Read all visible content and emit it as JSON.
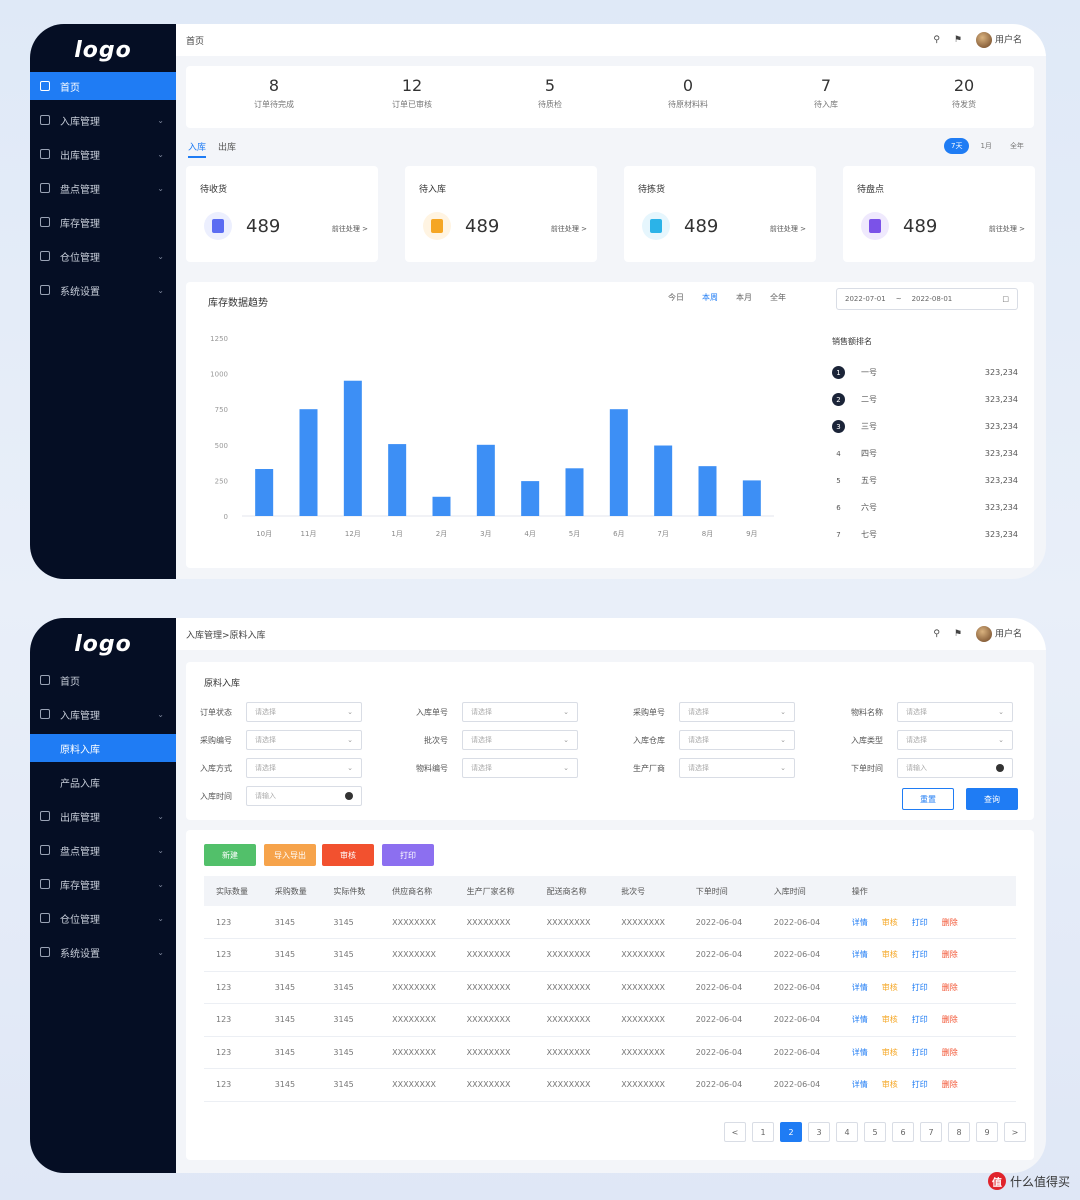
{
  "logo": "logo",
  "watermark": {
    "badge": "值",
    "text": "什么值得买"
  },
  "s1": {
    "sidebar": [
      "首页",
      "入库管理",
      "出库管理",
      "盘点管理",
      "库存管理",
      "仓位管理",
      "系统设置"
    ],
    "breadcrumb": "首页",
    "user": "用户名",
    "stats": [
      {
        "value": "8",
        "label": "订单待完成"
      },
      {
        "value": "12",
        "label": "订单已审核"
      },
      {
        "value": "5",
        "label": "待质检"
      },
      {
        "value": "0",
        "label": "待原材料料"
      },
      {
        "value": "7",
        "label": "待入库"
      },
      {
        "value": "20",
        "label": "待发货"
      }
    ],
    "tabs": [
      "入库",
      "出库"
    ],
    "seg": [
      "7天",
      "1月",
      "全年"
    ],
    "kpis": [
      {
        "title": "待收货",
        "value": "489",
        "link": "前往处理 >"
      },
      {
        "title": "待入库",
        "value": "489",
        "link": "前往处理 >"
      },
      {
        "title": "待拣货",
        "value": "489",
        "link": "前往处理 >"
      },
      {
        "title": "待盘点",
        "value": "489",
        "link": "前往处理 >"
      }
    ],
    "chart_title": "库存数据趋势",
    "range_tabs": [
      "今日",
      "本周",
      "本月",
      "全年"
    ],
    "date_start": "2022-07-01",
    "date_sep": "~",
    "date_end": "2022-08-01",
    "rank_title": "销售额排名",
    "ranks": [
      {
        "no": "1",
        "name": "一号",
        "value": "323,234"
      },
      {
        "no": "2",
        "name": "二号",
        "value": "323,234"
      },
      {
        "no": "3",
        "name": "三号",
        "value": "323,234"
      },
      {
        "no": "4",
        "name": "四号",
        "value": "323,234"
      },
      {
        "no": "5",
        "name": "五号",
        "value": "323,234"
      },
      {
        "no": "6",
        "name": "六号",
        "value": "323,234"
      },
      {
        "no": "7",
        "name": "七号",
        "value": "323,234"
      }
    ]
  },
  "chart_data": {
    "type": "bar",
    "categories": [
      "10月",
      "11月",
      "12月",
      "1月",
      "2月",
      "3月",
      "4月",
      "5月",
      "6月",
      "7月",
      "8月",
      "9月"
    ],
    "values": [
      330,
      750,
      950,
      505,
      135,
      500,
      245,
      335,
      750,
      495,
      350,
      250
    ],
    "yticks": [
      "1250",
      "1000",
      "750",
      "500",
      "250",
      "0"
    ],
    "ylim": [
      0,
      1250
    ],
    "color": "#3d8ff5"
  },
  "s2": {
    "sidebar": [
      {
        "label": "首页",
        "type": "item"
      },
      {
        "label": "入库管理",
        "type": "item"
      },
      {
        "label": "原料入库",
        "type": "sub-active"
      },
      {
        "label": "产品入库",
        "type": "sub"
      },
      {
        "label": "出库管理",
        "type": "item"
      },
      {
        "label": "盘点管理",
        "type": "item"
      },
      {
        "label": "库存管理",
        "type": "item"
      },
      {
        "label": "仓位管理",
        "type": "item"
      },
      {
        "label": "系统设置",
        "type": "item"
      }
    ],
    "breadcrumb": "入库管理>原料入库",
    "user": "用户名",
    "form_title": "原料入库",
    "placeholder_select": "请选择",
    "placeholder_input": "请输入",
    "fields": [
      "订单状态",
      "入库单号",
      "采购单号",
      "物料名称",
      "采购编号",
      "批次号",
      "入库仓库",
      "入库类型",
      "入库方式",
      "物料编号",
      "生产厂商",
      "下单时间",
      "入库时间"
    ],
    "reset": "重置",
    "query": "查询",
    "actions": [
      "新建",
      "导入导出",
      "审核",
      "打印"
    ],
    "columns": [
      "实际数量",
      "采购数量",
      "实际件数",
      "供应商名称",
      "生产厂家名称",
      "配送商名称",
      "批次号",
      "下单时间",
      "入库时间",
      "操作"
    ],
    "row": [
      "123",
      "3145",
      "3145",
      "XXXXXXXX",
      "XXXXXXXX",
      "XXXXXXXX",
      "XXXXXXXX",
      "2022-06-04",
      "2022-06-04"
    ],
    "ops": [
      "详情",
      "审核",
      "打印",
      "删除"
    ],
    "pages": [
      "<",
      "1",
      "2",
      "3",
      "4",
      "5",
      "6",
      "7",
      "8",
      "9",
      ">"
    ]
  }
}
